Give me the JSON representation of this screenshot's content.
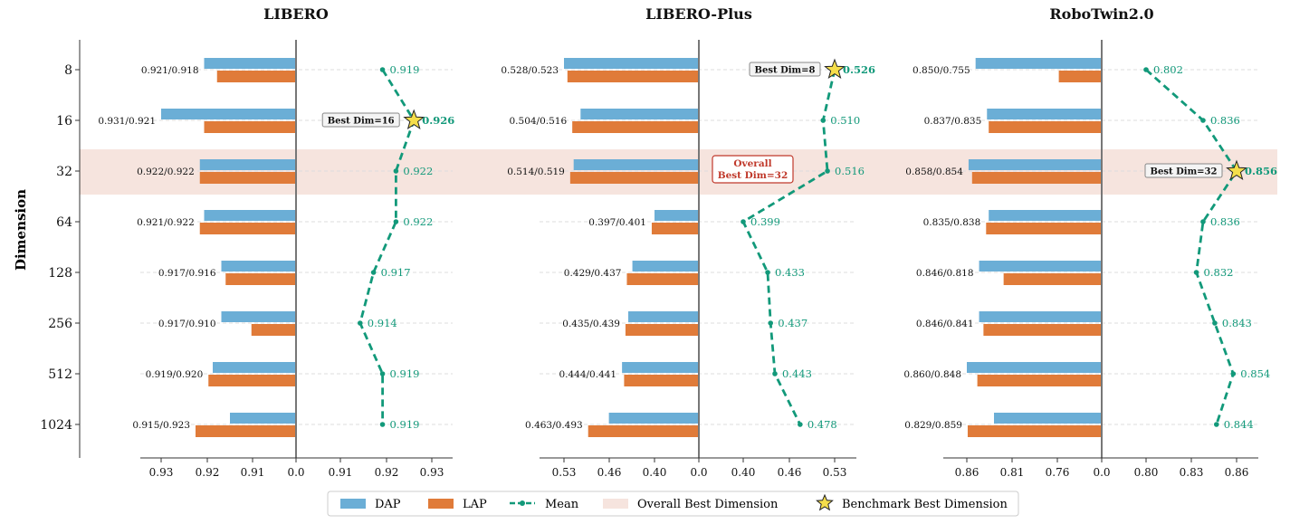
{
  "figure": {
    "ylabel": "Dimension",
    "dimensions": [
      "8",
      "16",
      "32",
      "64",
      "128",
      "256",
      "512",
      "1024"
    ],
    "highlight_dimension": "32",
    "colors": {
      "dap": "#6BAED6",
      "lap": "#E07B39",
      "mean": "#12997A",
      "highlight_band": "#F6E4DE",
      "star": "#F5DE4B",
      "overall_box": "#C0392B"
    }
  },
  "legend": {
    "dap": "DAP",
    "lap": "LAP",
    "mean": "Mean",
    "band": "Overall Best Dimension",
    "star": "Benchmark Best Dimension"
  },
  "chart_data": [
    {
      "type": "bar",
      "title": "LIBERO",
      "xlabel": "",
      "ylabel": "Dimension",
      "categories": [
        "8",
        "16",
        "32",
        "64",
        "128",
        "256",
        "512",
        "1024"
      ],
      "series": [
        {
          "name": "DAP",
          "values": [
            0.921,
            0.931,
            0.922,
            0.921,
            0.917,
            0.917,
            0.919,
            0.915
          ]
        },
        {
          "name": "LAP",
          "values": [
            0.918,
            0.921,
            0.922,
            0.922,
            0.916,
            0.91,
            0.92,
            0.923
          ]
        },
        {
          "name": "Mean",
          "values": [
            0.919,
            0.926,
            0.922,
            0.922,
            0.917,
            0.914,
            0.919,
            0.919
          ]
        }
      ],
      "bar_labels": [
        "0.921/0.918",
        "0.931/0.921",
        "0.922/0.922",
        "0.921/0.922",
        "0.917/0.916",
        "0.917/0.910",
        "0.919/0.920",
        "0.915/0.923"
      ],
      "mean_labels": [
        "0.919",
        "0.926",
        "0.922",
        "0.922",
        "0.917",
        "0.914",
        "0.919",
        "0.919"
      ],
      "left_ticks": [
        "0.93",
        "0.92",
        "0.91",
        "0.0"
      ],
      "right_ticks": [
        "0.91",
        "0.92",
        "0.93"
      ],
      "best_index": 1,
      "best_label": "Best Dim=16"
    },
    {
      "type": "bar",
      "title": "LIBERO-Plus",
      "xlabel": "",
      "ylabel": "",
      "categories": [
        "8",
        "16",
        "32",
        "64",
        "128",
        "256",
        "512",
        "1024"
      ],
      "series": [
        {
          "name": "DAP",
          "values": [
            0.528,
            0.504,
            0.514,
            0.397,
            0.429,
            0.435,
            0.444,
            0.463
          ]
        },
        {
          "name": "LAP",
          "values": [
            0.523,
            0.516,
            0.519,
            0.401,
            0.437,
            0.439,
            0.441,
            0.493
          ]
        },
        {
          "name": "Mean",
          "values": [
            0.526,
            0.51,
            0.516,
            0.399,
            0.433,
            0.437,
            0.443,
            0.478
          ]
        }
      ],
      "bar_labels": [
        "0.528/0.523",
        "0.504/0.516",
        "0.514/0.519",
        "0.397/0.401",
        "0.429/0.437",
        "0.435/0.439",
        "0.444/0.441",
        "0.463/0.493"
      ],
      "mean_labels": [
        "0.526",
        "0.510",
        "0.516",
        "0.399",
        "0.433",
        "0.437",
        "0.443",
        "0.478"
      ],
      "left_ticks": [
        "0.53",
        "0.46",
        "0.40",
        "0.0"
      ],
      "right_ticks": [
        "0.40",
        "0.46",
        "0.53"
      ],
      "best_index": 0,
      "best_label": "Best Dim=8",
      "overall_label_line1": "Overall",
      "overall_label_line2": "Best Dim=32"
    },
    {
      "type": "bar",
      "title": "RoboTwin2.0",
      "xlabel": "",
      "ylabel": "",
      "categories": [
        "8",
        "16",
        "32",
        "64",
        "128",
        "256",
        "512",
        "1024"
      ],
      "series": [
        {
          "name": "DAP",
          "values": [
            0.85,
            0.837,
            0.858,
            0.835,
            0.846,
            0.846,
            0.86,
            0.829
          ]
        },
        {
          "name": "LAP",
          "values": [
            0.755,
            0.835,
            0.854,
            0.838,
            0.818,
            0.841,
            0.848,
            0.859
          ]
        },
        {
          "name": "Mean",
          "values": [
            0.802,
            0.836,
            0.856,
            0.836,
            0.832,
            0.843,
            0.854,
            0.844
          ]
        }
      ],
      "bar_labels": [
        "0.850/0.755",
        "0.837/0.835",
        "0.858/0.854",
        "0.835/0.838",
        "0.846/0.818",
        "0.846/0.841",
        "0.860/0.848",
        "0.829/0.859"
      ],
      "mean_labels": [
        "0.802",
        "0.836",
        "0.856",
        "0.836",
        "0.832",
        "0.843",
        "0.854",
        "0.844"
      ],
      "left_ticks": [
        "0.86",
        "0.81",
        "0.76",
        "0.0"
      ],
      "right_ticks": [
        "0.80",
        "0.83",
        "0.86"
      ],
      "best_index": 2,
      "best_label": "Best Dim=32"
    }
  ]
}
